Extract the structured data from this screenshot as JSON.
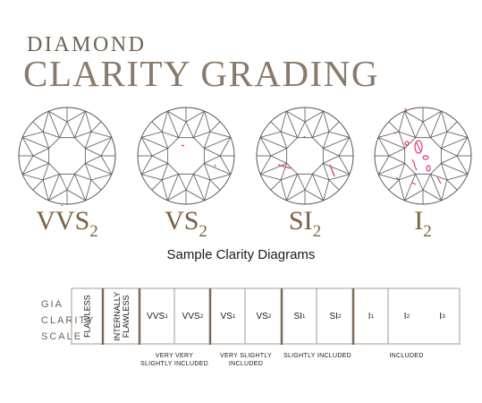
{
  "title": {
    "line1": "DIAMOND",
    "line2": "CLARITY GRADING"
  },
  "sample_grades": [
    {
      "main": "VVS",
      "sub": "2"
    },
    {
      "main": "VS",
      "sub": "2"
    },
    {
      "main": "SI",
      "sub": "2"
    },
    {
      "main": "I",
      "sub": "2"
    }
  ],
  "caption": "Sample Clarity Diagrams",
  "scale_label": [
    "GIA",
    "CLARITY",
    "SCALE"
  ],
  "scale_vertical": [
    "FLAWLESS",
    "INTERNALLY",
    "FLAWLESS"
  ],
  "scale_grades": [
    {
      "main": "VVS",
      "sub": "1"
    },
    {
      "main": "VVS",
      "sub": "2"
    },
    {
      "main": "VS",
      "sub": "1"
    },
    {
      "main": "VS",
      "sub": "2"
    },
    {
      "main": "SI",
      "sub": "1"
    },
    {
      "main": "SI",
      "sub": "2"
    },
    {
      "main": "I",
      "sub": "1"
    },
    {
      "main": "I",
      "sub": "2"
    },
    {
      "main": "I",
      "sub": "3"
    }
  ],
  "groups": [
    {
      "line1": "VERY VERY",
      "line2": "SLIGHTLY INCLUDED"
    },
    {
      "line1": "VERY SLIGHTLY",
      "line2": "INCLUDED"
    },
    {
      "line1": "SLIGHTLY INCLUDED",
      "line2": ""
    },
    {
      "line1": "INCLUDED",
      "line2": ""
    }
  ],
  "colors": {
    "title": "#8a7a6b",
    "grade_label": "#7a6040",
    "inclusion": "#e0388c",
    "divider": "#a89a8c",
    "outline": "#555555"
  }
}
